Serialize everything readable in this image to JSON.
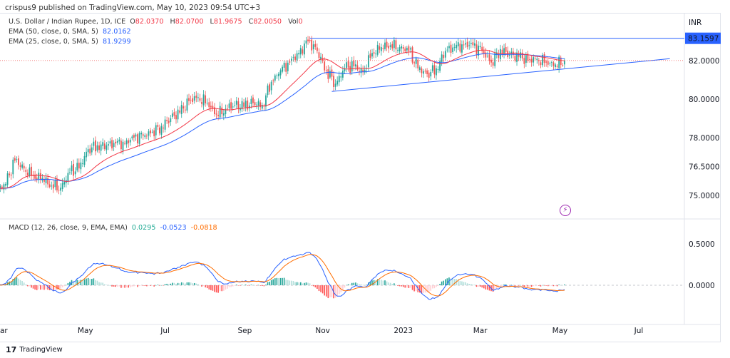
{
  "publisher": "crispus9 published on TradingView.com, May 10, 2023 09:54 UTC+3",
  "legend": {
    "symbol": "U.S. Dollar / Indian Rupee, 1D, ICE",
    "o_label": "O",
    "o": "82.0370",
    "h_label": "H",
    "h": "82.0700",
    "l_label": "L",
    "l": "81.9675",
    "c_label": "C",
    "c": "82.0050",
    "vol_label": "Vol",
    "vol": "0",
    "ema50_label": "EMA (50, close, 0, SMA, 5)",
    "ema50": "82.0162",
    "ema25_label": "EMA (25, close, 0, SMA, 5)",
    "ema25": "81.9299"
  },
  "macd_legend": {
    "label": "MACD (12, 26, close, 9, EMA, EMA)",
    "hist": "0.0295",
    "macd": "-0.0523",
    "signal": "-0.0818"
  },
  "currency": "INR",
  "price_label": "83.1597",
  "branding": "TradingView",
  "colors": {
    "up": "#26a69a",
    "down": "#ef5350",
    "ema50": "#2962ff",
    "ema25": "#f23645",
    "macd": "#2962ff",
    "signal": "#ff6d00",
    "trendline": "#2962ff"
  },
  "chart_data": [
    {
      "type": "candlestick",
      "title": "U.S. Dollar / Indian Rupee, 1D",
      "note": "approximate weekly closes, Mar 2022 - May 2023",
      "weekly_closes": [
        75.6,
        76.8,
        76.4,
        76.0,
        75.9,
        75.5,
        75.4,
        76.2,
        76.4,
        77.4,
        77.6,
        77.6,
        77.7,
        77.7,
        78.0,
        78.1,
        78.3,
        78.6,
        79.0,
        79.3,
        79.9,
        80.1,
        79.8,
        79.2,
        79.5,
        79.7,
        79.6,
        79.8,
        79.7,
        80.9,
        81.5,
        81.9,
        82.4,
        83.0,
        82.5,
        81.5,
        80.8,
        81.6,
        81.7,
        81.4,
        82.4,
        82.7,
        82.8,
        82.7,
        82.5,
        81.6,
        81.3,
        81.6,
        82.5,
        82.7,
        82.8,
        82.8,
        82.5,
        81.9,
        82.6,
        82.3,
        82.2,
        82.0,
        82.1,
        81.9,
        81.8,
        82.0
      ],
      "y_ticks": [
        "82.0000",
        "80.0000",
        "78.0000",
        "76.5000",
        "75.0000"
      ],
      "y_tick_values": [
        82,
        80,
        78,
        76.5,
        75
      ],
      "x_ticks": [
        {
          "label": "ar",
          "week": 0
        },
        {
          "label": "May",
          "week": 8.7
        },
        {
          "label": "Jul",
          "week": 17.4
        },
        {
          "label": "Sep",
          "week": 26.1
        },
        {
          "label": "Nov",
          "week": 34.6
        },
        {
          "label": "2023",
          "week": 43.4
        },
        {
          "label": "Mar",
          "week": 51.8
        },
        {
          "label": "May",
          "week": 60.5
        },
        {
          "label": "Jul",
          "week": 69.1
        }
      ],
      "horizontal_line": {
        "price": 83.1597,
        "from_week": 33.2
      },
      "support_line": {
        "from": {
          "week": 35.6,
          "price": 80.4
        },
        "to": {
          "week": 72.5,
          "price": 82.1
        }
      },
      "current_price": 82.005
    },
    {
      "type": "line",
      "title": "MACD (12, 26, close, 9, EMA, EMA)",
      "y_ticks": [
        "0.5000",
        "0.0000"
      ],
      "y_tick_values": [
        0.5,
        0
      ]
    }
  ]
}
